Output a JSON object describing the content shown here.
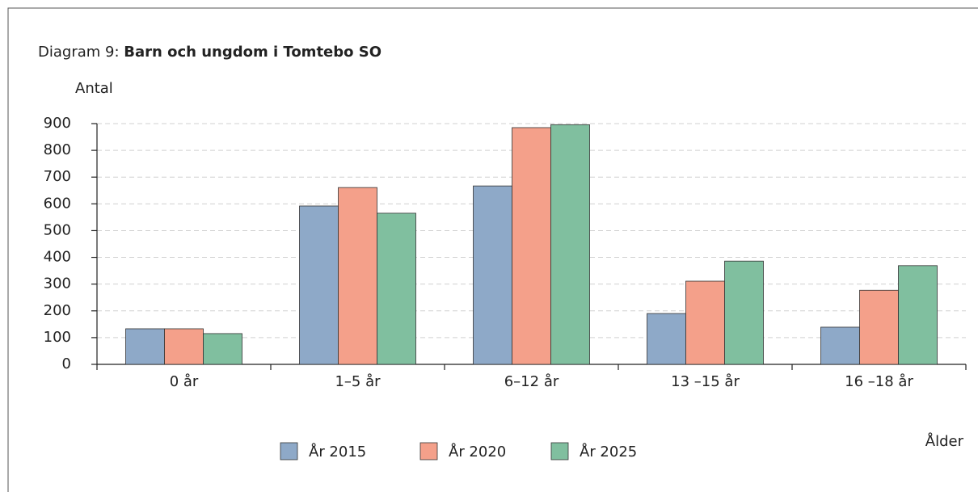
{
  "chart_data": {
    "type": "bar",
    "title_prefix": "Diagram 9:",
    "title": "Barn och ungdom i Tomtebo SO",
    "y_label": "Antal",
    "x_label": "Ålder",
    "categories": [
      "0 år",
      "1–5 år",
      "6–12 år",
      "13 –15 år",
      "16 –18 år"
    ],
    "series": [
      {
        "name": "År 2015",
        "color": "#8ea9c8",
        "values": [
          133,
          592,
          667,
          190,
          139
        ]
      },
      {
        "name": "År 2020",
        "color": "#f4a08a",
        "values": [
          133,
          661,
          885,
          311,
          277
        ]
      },
      {
        "name": "År 2025",
        "color": "#80bf9f",
        "values": [
          115,
          565,
          896,
          386,
          369
        ]
      }
    ],
    "ylim": [
      0,
      900
    ],
    "yticks": [
      0,
      100,
      200,
      300,
      400,
      500,
      600,
      700,
      800,
      900
    ],
    "grid": true,
    "legend": "bottom"
  }
}
